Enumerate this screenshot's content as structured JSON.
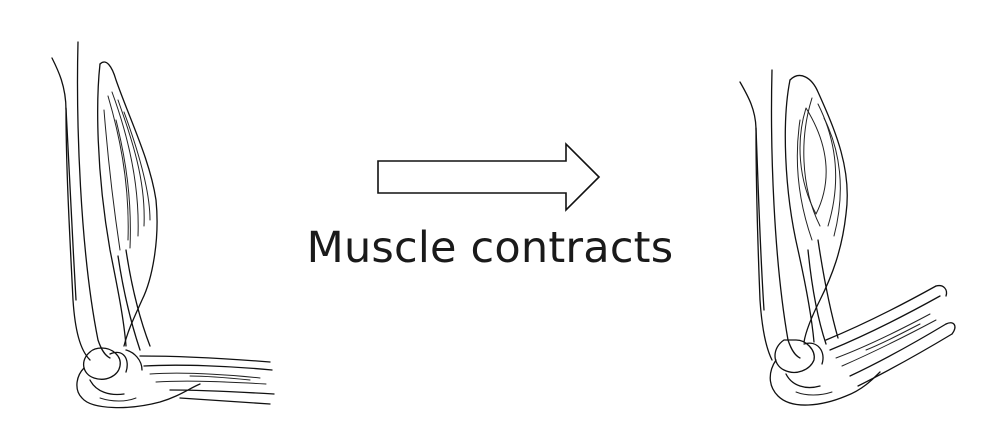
{
  "diagram": {
    "caption": "Muscle contracts",
    "panels": [
      {
        "id": "relaxed",
        "icon": "arm-relaxed-icon"
      },
      {
        "id": "contracted",
        "icon": "arm-flexed-icon"
      }
    ],
    "connector": {
      "icon": "arrow-right-icon"
    },
    "colors": {
      "background": "#ffffff",
      "ink": "#111111",
      "text": "#1a1a1a"
    }
  }
}
